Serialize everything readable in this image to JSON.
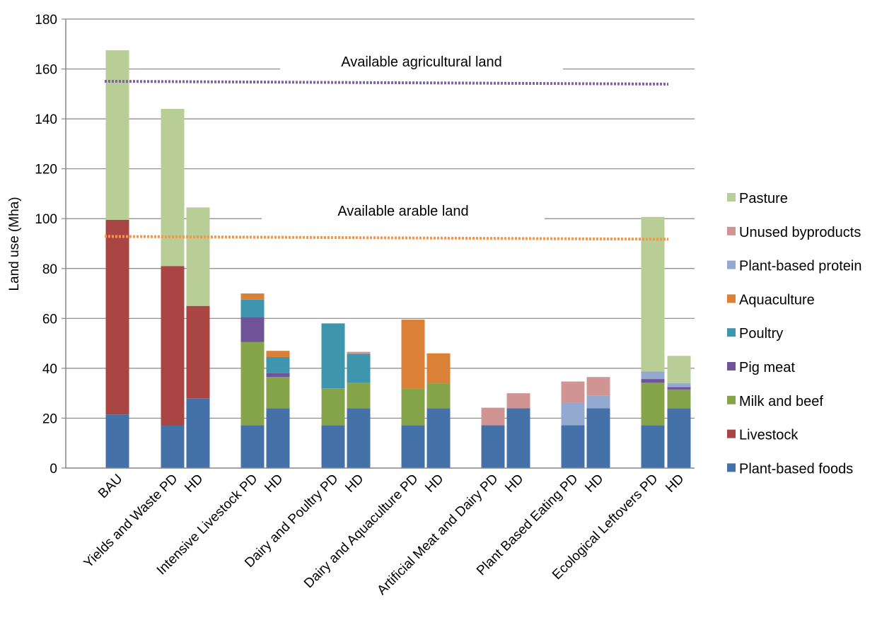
{
  "chart_data": {
    "type": "bar",
    "stacked": true,
    "title": "",
    "xlabel": "",
    "ylabel": "Land use (Mha)",
    "ylim": [
      0,
      180
    ],
    "yticks": [
      "0",
      "20",
      "40",
      "60",
      "80",
      "100",
      "120",
      "140",
      "160",
      "180"
    ],
    "grid": true,
    "legend_position": "right",
    "categories": [
      "BAU",
      "Yields and Waste PD",
      "HD",
      "Intensive Livestock PD",
      "HD",
      "Dairy and Poultry PD",
      "HD",
      "Dairy and Aquaculture PD",
      "HD",
      "Artificial Meat and Dairy PD",
      "HD",
      "Plant Based Eating PD",
      "HD",
      "Ecological Leftovers PD",
      "HD"
    ],
    "series": [
      {
        "name": "Plant-based foods",
        "color": "#4472A8",
        "values": [
          21.5,
          17,
          28,
          17.2,
          24,
          17.2,
          24,
          17.2,
          24,
          17.2,
          24,
          17.2,
          24,
          17.2,
          24
        ]
      },
      {
        "name": "Livestock",
        "color": "#A94543",
        "values": [
          78,
          64,
          37,
          0,
          0,
          0,
          0,
          0,
          0,
          0,
          0,
          0,
          0,
          0,
          0
        ]
      },
      {
        "name": "Milk and beef",
        "color": "#86A44A",
        "values": [
          0,
          0,
          0,
          33.3,
          12.5,
          14.8,
          10.3,
          14.8,
          10,
          0,
          0,
          0,
          0,
          17,
          7.5
        ]
      },
      {
        "name": "Pig meat",
        "color": "#6F5597",
        "values": [
          0,
          0,
          0,
          10,
          1.5,
          0,
          0,
          0,
          0,
          0,
          0,
          0,
          0,
          1.5,
          1
        ]
      },
      {
        "name": "Poultry",
        "color": "#3D96AE",
        "values": [
          0,
          0,
          0,
          7,
          6.5,
          26,
          11.5,
          0,
          0,
          0,
          0,
          0,
          0,
          0,
          0
        ]
      },
      {
        "name": "Aquaculture",
        "color": "#DA8137",
        "values": [
          0,
          0,
          0,
          2.5,
          2.5,
          0,
          0,
          27.5,
          12,
          0,
          0,
          0,
          0,
          0,
          0
        ]
      },
      {
        "name": "Plant-based protein",
        "color": "#93A9CF",
        "values": [
          0,
          0,
          0,
          0,
          0,
          0,
          0,
          0,
          0,
          0,
          0,
          9,
          5,
          3,
          1.5
        ]
      },
      {
        "name": "Unused byproducts",
        "color": "#D09493",
        "values": [
          0,
          0,
          0,
          0,
          0,
          0,
          0.8,
          0,
          0,
          7,
          6,
          8.5,
          7.5,
          0,
          0
        ]
      },
      {
        "name": "Pasture",
        "color": "#B9CD96",
        "values": [
          68,
          63,
          39.5,
          0,
          0,
          0,
          0,
          0,
          0,
          0,
          0,
          0,
          0,
          62,
          11
        ]
      }
    ],
    "annotations": [
      {
        "text": "Available agricultural land",
        "y": 154.5,
        "color": "#8064A2"
      },
      {
        "text": "Available arable land",
        "y": 92.3,
        "color": "#F79646"
      }
    ]
  }
}
